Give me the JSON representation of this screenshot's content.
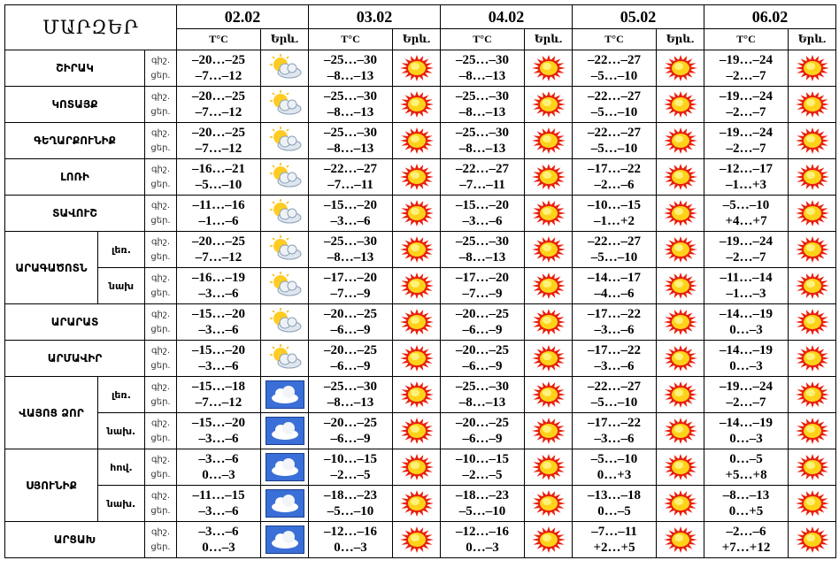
{
  "header": {
    "title": "ՄԱՐԶԵՐ",
    "dates": [
      "02.02",
      "03.02",
      "04.02",
      "05.02",
      "06.02"
    ],
    "temp_label": "T°C",
    "icon_label": "Երև."
  },
  "period_labels": [
    "գիշ.",
    "ցեր."
  ],
  "regions": [
    {
      "name": "ՇԻՐԱԿ",
      "rows": [
        {
          "night": [
            "–20…–25",
            "–25…–30",
            "–25…–30",
            "–22…–27",
            "–19…–24"
          ],
          "day": [
            "–7…–12",
            "–8…–13",
            "–8…–13",
            "–5…–10",
            "–2…–7"
          ]
        }
      ]
    },
    {
      "name": "ԿՈՏԱՅՔ",
      "rows": [
        {
          "night": [
            "–20…–25",
            "–25…–30",
            "–25…–30",
            "–22…–27",
            "–19…–24"
          ],
          "day": [
            "–7…–12",
            "–8…–13",
            "–8…–13",
            "–5…–10",
            "–2…–7"
          ]
        }
      ]
    },
    {
      "name": "ԳԵՂԱՐՔՈՒՆԻՔ",
      "rows": [
        {
          "night": [
            "–20…–25",
            "–25…–30",
            "–25…–30",
            "–22…–27",
            "–19…–24"
          ],
          "day": [
            "–7…–12",
            "–8…–13",
            "–8…–13",
            "–5…–10",
            "–2…–7"
          ]
        }
      ]
    },
    {
      "name": "ԼՈՌԻ",
      "rows": [
        {
          "night": [
            "–16…–21",
            "–22…–27",
            "–22…–27",
            "–17…–22",
            "–12…–17"
          ],
          "day": [
            "–5…–10",
            "–7…–11",
            "–7…–11",
            "–2…–6",
            "–1…+3"
          ]
        }
      ]
    },
    {
      "name": "ՏԱՎՈՒՇ",
      "rows": [
        {
          "night": [
            "–11…–16",
            "–15…–20",
            "–15…–20",
            "–10…–15",
            "–5…–10"
          ],
          "day": [
            "–1…–6",
            "–3…–6",
            "–3…–6",
            "–1…+2",
            "+4…+7"
          ]
        }
      ]
    },
    {
      "name": "ԱՐԱԳԱԾՈՏՆ",
      "rows": [
        {
          "zone": "լեռ.",
          "night": [
            "–20…–25",
            "–25…–30",
            "–25…–30",
            "–22…–27",
            "–19…–24"
          ],
          "day": [
            "–7…–12",
            "–8…–13",
            "–8…–13",
            "–5…–10",
            "–2…–7"
          ]
        },
        {
          "zone": "նախ",
          "night": [
            "–16…–19",
            "–17…–20",
            "–17…–20",
            "–14…–17",
            "–11…–14"
          ],
          "day": [
            "–3…–6",
            "–7…–9",
            "–7…–9",
            "–4…–6",
            "–1…–3"
          ]
        }
      ]
    },
    {
      "name": "ԱՐԱՐԱՏ",
      "rows": [
        {
          "night": [
            "–15…–20",
            "–20…–25",
            "–20…–25",
            "–17…–22",
            "–14…–19"
          ],
          "day": [
            "–3…–6",
            "–6…–9",
            "–6…–9",
            "–3…–6",
            "0…–3"
          ]
        }
      ]
    },
    {
      "name": "ԱՐՄԱՎԻՐ",
      "rows": [
        {
          "night": [
            "–15…–20",
            "–20…–25",
            "–20…–25",
            "–17…–22",
            "–14…–19"
          ],
          "day": [
            "–3…–6",
            "–6…–9",
            "–6…–9",
            "–3…–6",
            "0…–3"
          ]
        }
      ]
    },
    {
      "name": "ՎԱՅՈՑ ՁՈՐ",
      "rows": [
        {
          "zone": "լեռ.",
          "night": [
            "–15…–18",
            "–25…–30",
            "–25…–30",
            "–22…–27",
            "–19…–24"
          ],
          "day": [
            "–7…–12",
            "–8…–13",
            "–8…–13",
            "–5…–10",
            "–2…–7"
          ]
        },
        {
          "zone": "նախ.",
          "night": [
            "–15…–20",
            "–20…–25",
            "–20…–25",
            "–17…–22",
            "–14…–19"
          ],
          "day": [
            "–3…–6",
            "–6…–9",
            "–6…–9",
            "–3…–6",
            "0…–3"
          ]
        }
      ]
    },
    {
      "name": "ՍՅՈՒՆԻՔ",
      "rows": [
        {
          "zone": "հով.",
          "night": [
            "–3…–6",
            "–10…–15",
            "–10…–15",
            "–5…–10",
            "0…–5"
          ],
          "day": [
            "0…–3",
            "–2…–5",
            "–2…–5",
            "0…+3",
            "+5…+8"
          ]
        },
        {
          "zone": "նախ.",
          "night": [
            "–11…–15",
            "–18…–23",
            "–18…–23",
            "–13…–18",
            "–8…–13"
          ],
          "day": [
            "–3…–6",
            "–5…–10",
            "–5…–10",
            "0…–5",
            "0…+5"
          ]
        }
      ]
    },
    {
      "name": "ԱՐՑԱԽ",
      "rows": [
        {
          "night": [
            "–3…–6",
            "–12…–16",
            "–12…–16",
            "–7…–11",
            "–2…–6"
          ],
          "day": [
            "0…–3",
            "0…–3",
            "0…–3",
            "+2…+5",
            "+7…+12"
          ]
        }
      ]
    }
  ]
}
